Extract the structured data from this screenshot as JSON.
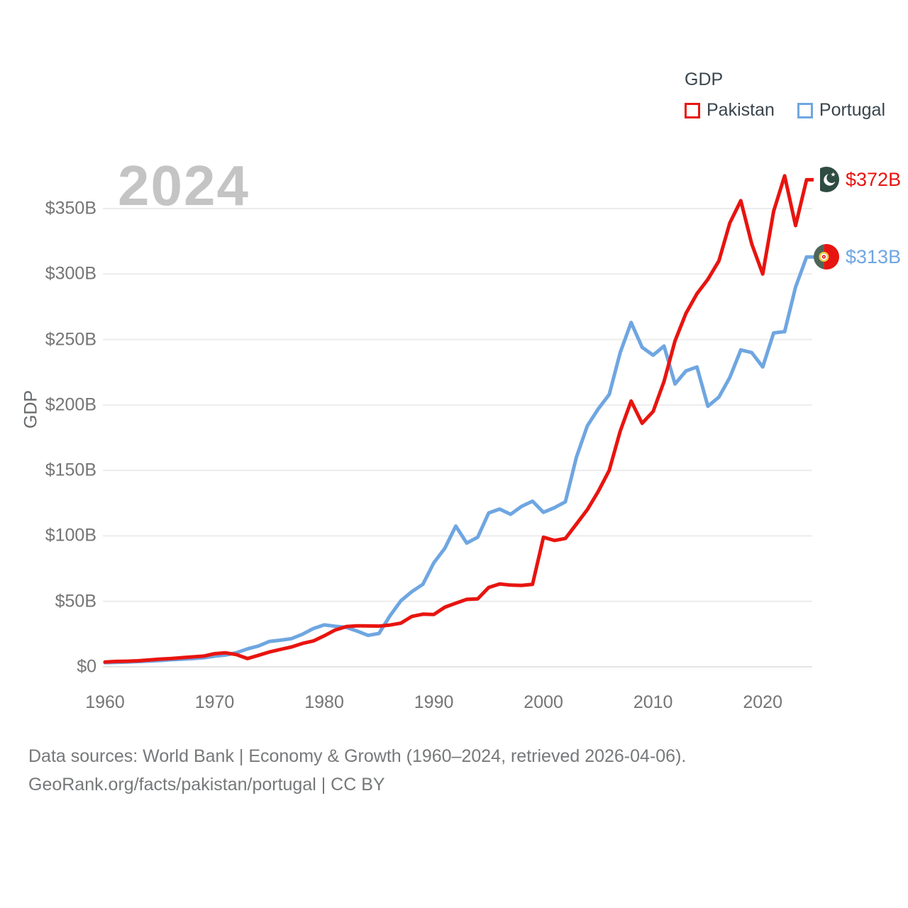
{
  "legend": {
    "title": "GDP",
    "items": [
      {
        "label": "Pakistan",
        "color": "#e8140f"
      },
      {
        "label": "Portugal",
        "color": "#6fa6e1"
      }
    ]
  },
  "watermark": {
    "text": "2024"
  },
  "end_labels": [
    {
      "series": "Pakistan",
      "text": "$372B",
      "color": "#e8140f",
      "flag": "pakistan-flag"
    },
    {
      "series": "Portugal",
      "text": "$313B",
      "color": "#6fa6e1",
      "flag": "portugal-flag"
    }
  ],
  "footer": {
    "line1": "Data sources: World Bank | Economy & Growth (1960–2024, retrieved 2026-04-06).",
    "line2": "GeoRank.org/facts/pakistan/portugal | CC BY"
  },
  "chart_data": {
    "type": "line",
    "title": "GDP",
    "ylabel": "GDP",
    "xlabel": "",
    "grid": "horizontal",
    "legend_position": "top-right",
    "xlim": [
      1959.8,
      2025
    ],
    "ylim": [
      0,
      375
    ],
    "x": [
      1960,
      1961,
      1962,
      1963,
      1964,
      1965,
      1966,
      1967,
      1968,
      1969,
      1970,
      1971,
      1972,
      1973,
      1974,
      1975,
      1976,
      1977,
      1978,
      1979,
      1980,
      1981,
      1982,
      1983,
      1984,
      1985,
      1986,
      1987,
      1988,
      1989,
      1990,
      1991,
      1992,
      1993,
      1994,
      1995,
      1996,
      1997,
      1998,
      1999,
      2000,
      2001,
      2002,
      2003,
      2004,
      2005,
      2006,
      2007,
      2008,
      2009,
      2010,
      2011,
      2012,
      2013,
      2014,
      2015,
      2016,
      2017,
      2018,
      2019,
      2020,
      2021,
      2022,
      2023,
      2024
    ],
    "series": [
      {
        "name": "Pakistan",
        "color": "#e8140f",
        "values": [
          3.7,
          4.1,
          4.3,
          4.6,
          5.2,
          5.9,
          6.3,
          7.0,
          7.6,
          8.2,
          10.0,
          10.7,
          9.3,
          6.3,
          8.8,
          11.3,
          13.3,
          15.1,
          17.8,
          19.7,
          23.7,
          28.1,
          30.7,
          31.3,
          31.2,
          31.1,
          31.9,
          33.4,
          38.5,
          40.2,
          40.0,
          45.5,
          48.6,
          51.5,
          51.9,
          60.6,
          63.3,
          62.4,
          62.2,
          63.0,
          99.0,
          96.5,
          98.0,
          109,
          120,
          134,
          150,
          180,
          203,
          186,
          195,
          218,
          249,
          270,
          285,
          296,
          310,
          339,
          356,
          323,
          300,
          348,
          375,
          337,
          372
        ]
      },
      {
        "name": "Portugal",
        "color": "#6fa6e1",
        "values": [
          3.2,
          3.4,
          3.7,
          4.0,
          4.4,
          4.8,
          5.4,
          5.8,
          6.3,
          6.9,
          8.1,
          9.0,
          10.8,
          13.7,
          15.9,
          19.4,
          20.3,
          21.5,
          24.8,
          29.2,
          32.0,
          31.0,
          30.1,
          27.3,
          24.0,
          25.5,
          39.0,
          50.5,
          57.5,
          63.0,
          79.5,
          90.5,
          107.5,
          94.5,
          99.0,
          117.5,
          120.5,
          116.5,
          122.5,
          126.5,
          118.0,
          121.5,
          126.0,
          160.0,
          184.0,
          197.0,
          208.0,
          240.0,
          263.0,
          244.0,
          238.0,
          245.0,
          216.0,
          226.0,
          229.0,
          199.0,
          206.0,
          221.0,
          242.0,
          240.0,
          229.0,
          255.0,
          256.0,
          290.0,
          313.0
        ]
      }
    ],
    "xticks": [
      1960,
      1970,
      1980,
      1990,
      2000,
      2010,
      2020
    ],
    "yticks": {
      "values": [
        0,
        50,
        100,
        150,
        200,
        250,
        300,
        350
      ],
      "labels": [
        "$0",
        "$50B",
        "$100B",
        "$150B",
        "$200B",
        "$250B",
        "$300B",
        "$350B"
      ]
    },
    "end_annotations": [
      {
        "series": "Pakistan",
        "value_label": "$372B"
      },
      {
        "series": "Portugal",
        "value_label": "$313B"
      }
    ]
  }
}
